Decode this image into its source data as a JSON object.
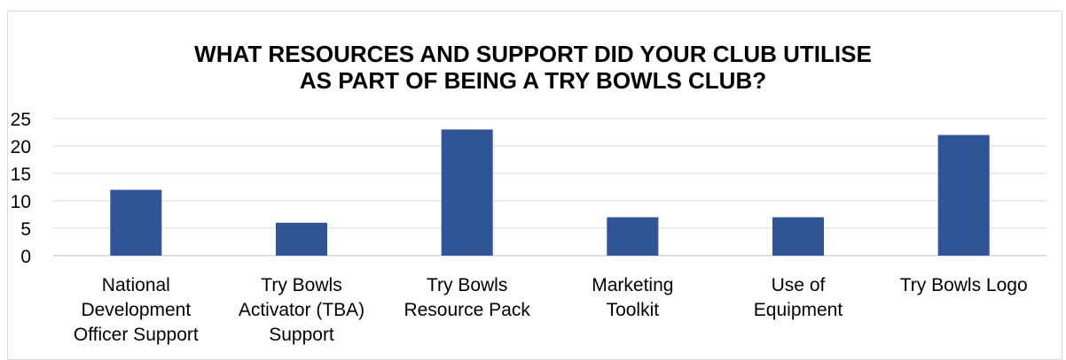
{
  "chart_data": {
    "type": "bar",
    "title_lines": [
      "WHAT RESOURCES AND SUPPORT DID YOUR CLUB UTILISE",
      "AS PART OF BEING A TRY BOWLS CLUB?"
    ],
    "categories": [
      [
        "National",
        "Development",
        "Officer Support"
      ],
      [
        "Try Bowls",
        "Activator (TBA)",
        "Support"
      ],
      [
        "Try Bowls",
        "Resource Pack"
      ],
      [
        "Marketing",
        "Toolkit"
      ],
      [
        "Use of",
        "Equipment"
      ],
      [
        "Try Bowls Logo"
      ]
    ],
    "values": [
      12,
      6,
      23,
      7,
      7,
      22
    ],
    "ylim": [
      0,
      25
    ],
    "yticks": [
      "0",
      "5",
      "10",
      "15",
      "20",
      "25"
    ],
    "grid": true,
    "bar_color": "#2f5597",
    "grid_color": "#d9d9d9",
    "axis_color": "#bfbfbf"
  }
}
